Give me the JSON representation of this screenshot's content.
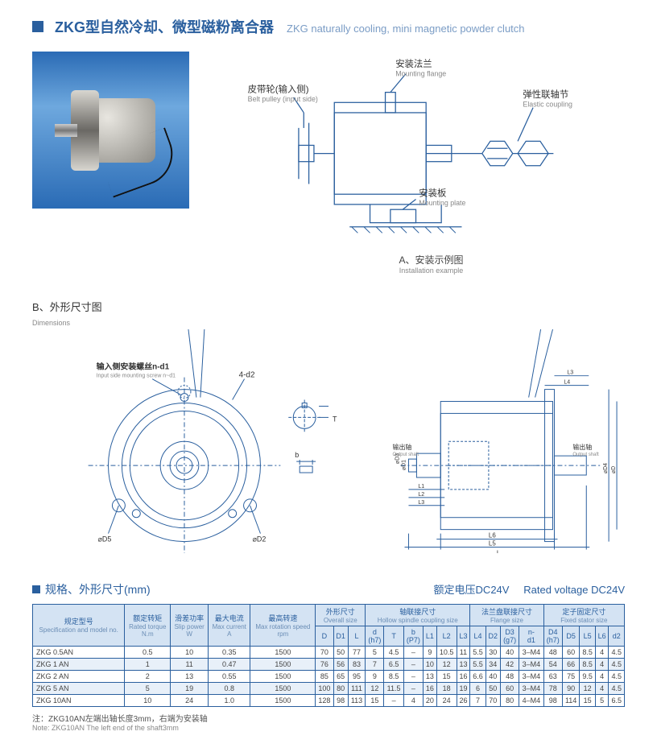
{
  "title": {
    "cn": "ZKG型自然冷却、微型磁粉离合器",
    "en": "ZKG naturally cooling, mini magnetic powder clutch"
  },
  "diagramA": {
    "labels": {
      "pulley_cn": "皮带轮(输入侧)",
      "pulley_en": "Belt pulley (input side)",
      "flange_cn": "安装法兰",
      "flange_en": "Mounting flange",
      "coupling_cn": "弹性联轴节",
      "coupling_en": "Elastic coupling",
      "plate_cn": "安装板",
      "plate_en": "Mounting plate"
    },
    "caption_cn": "A、安装示例图",
    "caption_en": "Installation example",
    "stroke": "#2a5f9e"
  },
  "diagramB": {
    "label_cn": "B、外形尺寸图",
    "label_en": "Dimensions",
    "screw_label_cn": "输入侧安装螺丝n-d1",
    "screw_label_en": "Input side mounting screw  n~d1",
    "d2_label": "4-d2",
    "output_cn": "输出轴",
    "output_en": "Output shaft",
    "output2_cn": "输出轴",
    "output2_en": "Output shaft",
    "stroke": "#2a5f9e"
  },
  "tableTitle": {
    "cn": "规格、外形尺寸(mm)",
    "voltage_cn": "额定电压DC24V",
    "voltage_en": "Rated voltage DC24V"
  },
  "columns": {
    "model": {
      "cn": "规定型号",
      "en": "Specification and model no."
    },
    "torque": {
      "cn": "额定转矩",
      "en": "Rated torque",
      "unit": "N.m"
    },
    "slip": {
      "cn": "滑差功率",
      "en": "Slip power",
      "unit": "W"
    },
    "current": {
      "cn": "最大电流",
      "en": "Max current",
      "unit": "A"
    },
    "speed": {
      "cn": "最高转速",
      "en": "Max rotation speed",
      "unit": "rpm"
    },
    "overall": {
      "cn": "外形尺寸",
      "en": "Overall size"
    },
    "hollow": {
      "cn": "轴联接尺寸",
      "en": "Hollow spindle coupling size"
    },
    "flange": {
      "cn": "法兰盘联接尺寸",
      "en": "Flange size"
    },
    "stator": {
      "cn": "定子固定尺寸",
      "en": "Fixed stator size"
    }
  },
  "subcols": [
    "D",
    "D1",
    "L",
    "d\n(h7)",
    "T",
    "b\n(P7)",
    "L1",
    "L2",
    "L3",
    "L4",
    "D2",
    "D3\n(g7)",
    "n-\nd1",
    "D4\n(h7)",
    "D5",
    "L5",
    "L6",
    "d2"
  ],
  "rows": [
    {
      "m": "ZKG 0.5AN",
      "t": "0.5",
      "s": "10",
      "c": "0.35",
      "r": "1500",
      "v": [
        "70",
        "50",
        "77",
        "5",
        "4.5",
        "–",
        "9",
        "10.5",
        "11",
        "5.5",
        "30",
        "40",
        "3–M4",
        "48",
        "60",
        "8.5",
        "4",
        "4.5"
      ]
    },
    {
      "m": "ZKG  1 AN",
      "t": "1",
      "s": "11",
      "c": "0.47",
      "r": "1500",
      "v": [
        "76",
        "56",
        "83",
        "7",
        "6.5",
        "–",
        "10",
        "12",
        "13",
        "5.5",
        "34",
        "42",
        "3–M4",
        "54",
        "66",
        "8.5",
        "4",
        "4.5"
      ]
    },
    {
      "m": "ZKG  2 AN",
      "t": "2",
      "s": "13",
      "c": "0.55",
      "r": "1500",
      "v": [
        "85",
        "65",
        "95",
        "9",
        "8.5",
        "–",
        "13",
        "15",
        "16",
        "6.6",
        "40",
        "48",
        "3–M4",
        "63",
        "75",
        "9.5",
        "4",
        "4.5"
      ]
    },
    {
      "m": "ZKG  5 AN",
      "t": "5",
      "s": "19",
      "c": "0.8",
      "r": "1500",
      "v": [
        "100",
        "80",
        "111",
        "12",
        "11.5",
        "–",
        "16",
        "18",
        "19",
        "6",
        "50",
        "60",
        "3–M4",
        "78",
        "90",
        "12",
        "4",
        "4.5"
      ]
    },
    {
      "m": "ZKG 10AN",
      "t": "10",
      "s": "24",
      "c": "1.0",
      "r": "1500",
      "v": [
        "128",
        "98",
        "113",
        "15",
        "–",
        "4",
        "20",
        "24",
        "26",
        "7",
        "70",
        "80",
        "4–M4",
        "98",
        "114",
        "15",
        "5",
        "6.5"
      ]
    }
  ],
  "note": {
    "cn": "注：ZKG10AN左端出轴长度3mm，右端为安装轴",
    "en": "Note: ZKG10AN The left end of the shaft3mm"
  }
}
